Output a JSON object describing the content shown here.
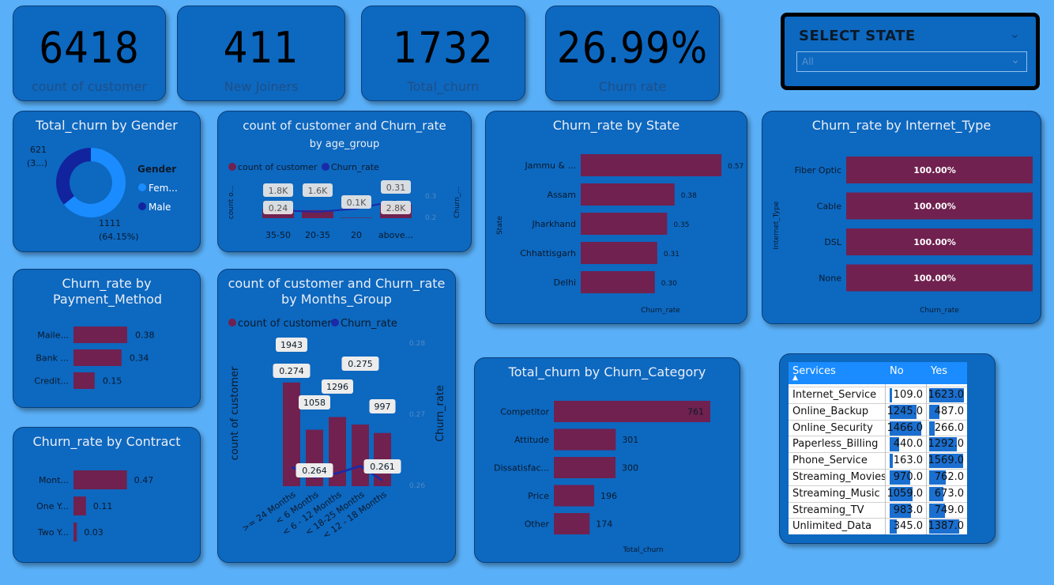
{
  "kpis": [
    {
      "value": "6418",
      "label": "count of customer"
    },
    {
      "value": "411",
      "label": "New Joiners"
    },
    {
      "value": "1732",
      "label": "Total_churn"
    },
    {
      "value": "26.99%",
      "label": "Churn rate"
    }
  ],
  "slicer": {
    "title": "SELECT STATE",
    "value": "All"
  },
  "colors": {
    "bar": "#70214f",
    "line": "#1a2aa8",
    "female": "#1a8cff",
    "male": "#12239e",
    "card": "#0d68c0",
    "background": "#5ab0f8"
  },
  "chart_data": [
    {
      "id": "gender",
      "type": "pie",
      "title": "Total_churn by Gender",
      "legend_title": "Gender",
      "categories": [
        "Fem...",
        "Male"
      ],
      "values": [
        1111,
        621
      ],
      "labels": [
        "1111\n(64.15%)",
        "621\n(3...)"
      ]
    },
    {
      "id": "age",
      "type": "bar",
      "title": "count of customer and Churn_rate",
      "subtitle": "by age_group",
      "legend": [
        "count of customer",
        "Churn_rate"
      ],
      "categories": [
        "35-50",
        "20-35",
        "20",
        "above..."
      ],
      "series": [
        {
          "name": "count of customer",
          "values": [
            1800,
            1600,
            100,
            2800
          ],
          "labels": [
            "1.8K",
            "1.6K",
            "0.1K",
            "2.8K"
          ]
        },
        {
          "name": "Churn_rate",
          "values": [
            0.25,
            0.24,
            0.26,
            0.31
          ],
          "labels": [
            "",
            "0.24",
            "",
            "0.31"
          ]
        }
      ],
      "ylabel": "count o...",
      "y2label": "Churn_...",
      "y2ticks": [
        "0.3",
        "0.2"
      ]
    },
    {
      "id": "payment",
      "type": "bar",
      "title": "Churn_rate by Payment_Method",
      "categories": [
        "Maile...",
        "Bank ...",
        "Credit..."
      ],
      "values": [
        0.38,
        0.34,
        0.15
      ],
      "labels": [
        "0.38",
        "0.34",
        "0.15"
      ]
    },
    {
      "id": "contract",
      "type": "bar",
      "title": "Churn_rate by Contract",
      "categories": [
        "Mont...",
        "One Y...",
        "Two Y..."
      ],
      "values": [
        0.47,
        0.11,
        0.03
      ],
      "labels": [
        "0.47",
        "0.11",
        "0.03"
      ]
    },
    {
      "id": "months",
      "type": "bar",
      "title": "count of customer and Churn_rate by Months_Group",
      "legend": [
        "count of customer",
        "Churn_rate"
      ],
      "categories": [
        ">= 24 Months",
        "< 6 Months",
        "< 6 - 12 Months",
        "< 18-25 Months",
        "< 12 - 18 Months"
      ],
      "series": [
        {
          "name": "count of customer",
          "values": [
            1943,
            1058,
            1296,
            1155,
            997
          ],
          "labels": [
            "1943",
            "1058",
            "1296",
            "",
            "997"
          ]
        },
        {
          "name": "Churn_rate",
          "values": [
            0.274,
            0.264,
            0.268,
            0.275,
            0.261
          ],
          "labels": [
            "0.274",
            "0.264",
            "",
            "0.275",
            "0.261"
          ]
        }
      ],
      "ylabel": "count of customer",
      "y2label": "Churn_rate",
      "y2ticks": [
        "0.28",
        "0.27",
        "0.26"
      ]
    },
    {
      "id": "state",
      "type": "bar",
      "title": "Churn_rate by State",
      "categories": [
        "Jammu & ...",
        "Assam",
        "Jharkhand",
        "Chhattisgarh",
        "Delhi"
      ],
      "values": [
        0.57,
        0.38,
        0.35,
        0.31,
        0.3
      ],
      "labels": [
        "0.57",
        "0.38",
        "0.35",
        "0.31",
        "0.30"
      ],
      "xlabel": "Churn_rate",
      "ylabel": "State"
    },
    {
      "id": "internet",
      "type": "bar",
      "title": "Churn_rate by Internet_Type",
      "categories": [
        "Fiber Optic",
        "Cable",
        "DSL",
        "None"
      ],
      "values": [
        1,
        1,
        1,
        1
      ],
      "labels": [
        "100.00%",
        "100.00%",
        "100.00%",
        "100.00%"
      ],
      "xlabel": "Churn_rate",
      "ylabel": "Internet_Type"
    },
    {
      "id": "category",
      "type": "bar",
      "title": "Total_churn by Churn_Category",
      "categories": [
        "Competitor",
        "Attitude",
        "Dissatisfac...",
        "Price",
        "Other"
      ],
      "values": [
        761,
        301,
        300,
        196,
        174
      ],
      "labels": [
        "761",
        "301",
        "300",
        "196",
        "174"
      ],
      "xlabel": "Total_churn"
    },
    {
      "id": "services",
      "type": "table",
      "columns": [
        "Services",
        "No",
        "Yes"
      ],
      "rows": [
        {
          "service": "Internet_Service",
          "no": 109.0,
          "yes": 1623.0,
          "no_text": "109.0",
          "yes_text": "1623.0"
        },
        {
          "service": "Online_Backup",
          "no": 1245.0,
          "yes": 487.0,
          "no_text": "1245.0",
          "yes_text": "487.0"
        },
        {
          "service": "Online_Security",
          "no": 1466.0,
          "yes": 266.0,
          "no_text": "1466.0",
          "yes_text": "266.0"
        },
        {
          "service": "Paperless_Billing",
          "no": 440.0,
          "yes": 1292.0,
          "no_text": "440.0",
          "yes_text": "1292.0"
        },
        {
          "service": "Phone_Service",
          "no": 163.0,
          "yes": 1569.0,
          "no_text": "163.0",
          "yes_text": "1569.0"
        },
        {
          "service": "Streaming_Movies",
          "no": 970.0,
          "yes": 762.0,
          "no_text": "970.0",
          "yes_text": "762.0"
        },
        {
          "service": "Streaming_Music",
          "no": 1059.0,
          "yes": 673.0,
          "no_text": "1059.0",
          "yes_text": "673.0"
        },
        {
          "service": "Streaming_TV",
          "no": 983.0,
          "yes": 749.0,
          "no_text": "983.0",
          "yes_text": "749.0"
        },
        {
          "service": "Unlimited_Data",
          "no": 345.0,
          "yes": 1387.0,
          "no_text": "345.0",
          "yes_text": "1387.0"
        }
      ]
    }
  ]
}
